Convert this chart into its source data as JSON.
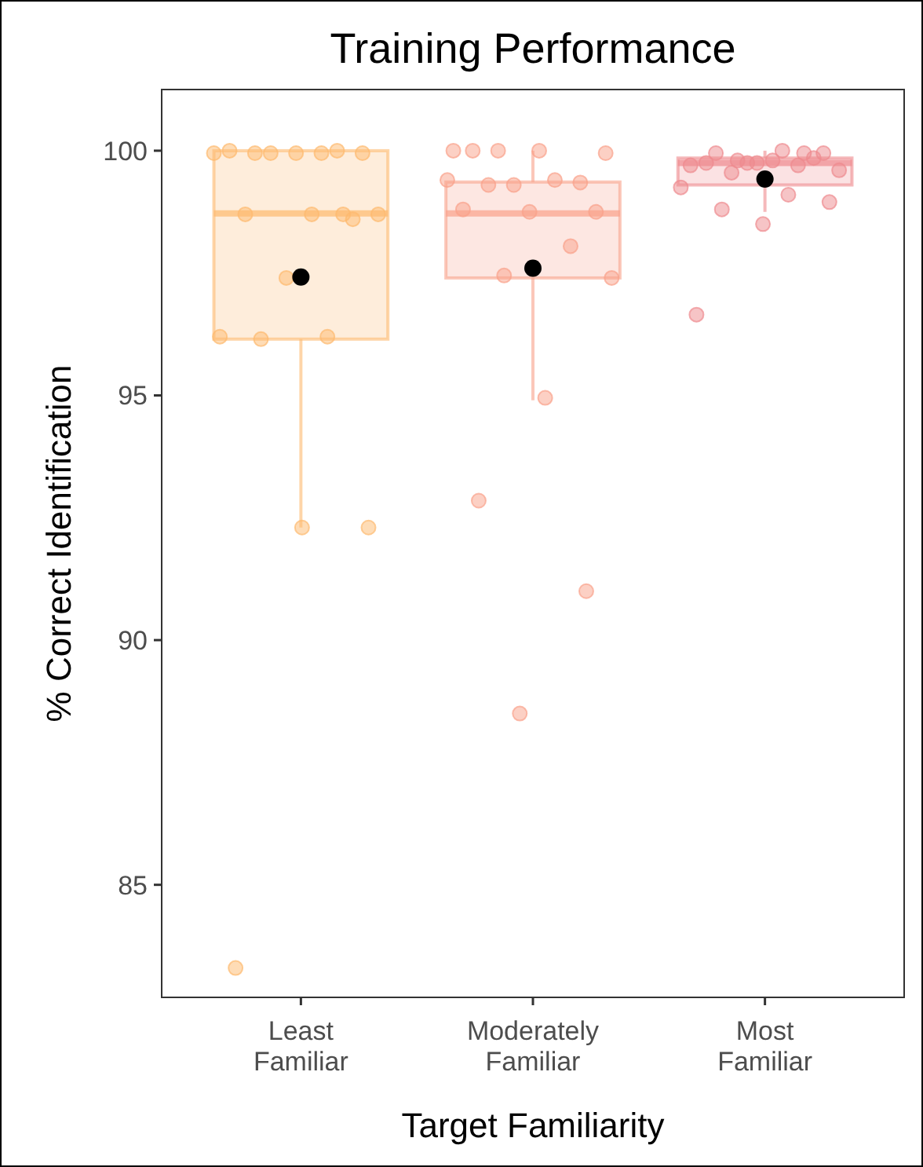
{
  "chart_data": {
    "type": "box",
    "title": "Training Performance",
    "xlabel": "Target Familiarity",
    "ylabel": "% Correct Identification",
    "categories": [
      "Least Familiar",
      "Moderately Familiar",
      "Most Familiar"
    ],
    "colors": [
      "#fdb96e",
      "#f9a18a",
      "#ee8a8e"
    ],
    "boxes": [
      {
        "low": 92.3,
        "q1": 96.15,
        "median": 98.72,
        "q3": 100,
        "high": 100,
        "mean": 97.42
      },
      {
        "low": 94.9,
        "q1": 97.4,
        "median": 98.72,
        "q3": 99.36,
        "high": 100,
        "mean": 97.6
      },
      {
        "low": 98.75,
        "q1": 99.3,
        "median": 99.75,
        "q3": 99.85,
        "high": 100,
        "mean": 99.42
      }
    ],
    "series": [
      {
        "type": "scatter",
        "color": "#fdb96e",
        "x": [
          "Least Familiar",
          "Least Familiar",
          "Least Familiar",
          "Least Familiar",
          "Least Familiar",
          "Least Familiar",
          "Least Familiar",
          "Least Familiar",
          "Least Familiar",
          "Least Familiar",
          "Least Familiar",
          "Least Familiar",
          "Least Familiar",
          "Least Familiar",
          "Least Familiar",
          "Least Familiar",
          "Least Familiar",
          "Least Familiar",
          "Least Familiar",
          "Least Familiar"
        ],
        "values": [
          99.95,
          99.95,
          99.95,
          99.95,
          99.95,
          100,
          100,
          99.95,
          98.7,
          98.7,
          98.7,
          98.6,
          97.4,
          96.2,
          96.2,
          96.15,
          92.3,
          92.3,
          83.3,
          98.7
        ]
      },
      {
        "type": "scatter",
        "color": "#f9a18a",
        "x": [
          "Moderately Familiar",
          "Moderately Familiar",
          "Moderately Familiar",
          "Moderately Familiar",
          "Moderately Familiar",
          "Moderately Familiar",
          "Moderately Familiar",
          "Moderately Familiar",
          "Moderately Familiar",
          "Moderately Familiar",
          "Moderately Familiar",
          "Moderately Familiar",
          "Moderately Familiar",
          "Moderately Familiar",
          "Moderately Familiar",
          "Moderately Familiar",
          "Moderately Familiar",
          "Moderately Familiar",
          "Moderately Familiar",
          "Moderately Familiar"
        ],
        "values": [
          100,
          99.95,
          100,
          100,
          99.35,
          99.3,
          99.4,
          99.4,
          99.3,
          98.75,
          98.75,
          98.8,
          98.05,
          97.45,
          97.4,
          94.95,
          92.85,
          91.0,
          88.5,
          100
        ]
      },
      {
        "type": "scatter",
        "color": "#ee8a8e",
        "x": [
          "Most Familiar",
          "Most Familiar",
          "Most Familiar",
          "Most Familiar",
          "Most Familiar",
          "Most Familiar",
          "Most Familiar",
          "Most Familiar",
          "Most Familiar",
          "Most Familiar",
          "Most Familiar",
          "Most Familiar",
          "Most Familiar",
          "Most Familiar",
          "Most Familiar",
          "Most Familiar",
          "Most Familiar",
          "Most Familiar",
          "Most Familiar",
          "Most Familiar"
        ],
        "values": [
          100,
          99.95,
          99.95,
          99.75,
          99.7,
          99.7,
          99.55,
          99.6,
          99.8,
          99.75,
          99.85,
          99.75,
          99.25,
          99.1,
          98.8,
          98.95,
          98.5,
          96.65,
          99.95,
          99.8
        ]
      }
    ],
    "ylim": [
      82.7,
      101.25
    ],
    "yticks": [
      85,
      90,
      95,
      100
    ],
    "grid": false
  }
}
